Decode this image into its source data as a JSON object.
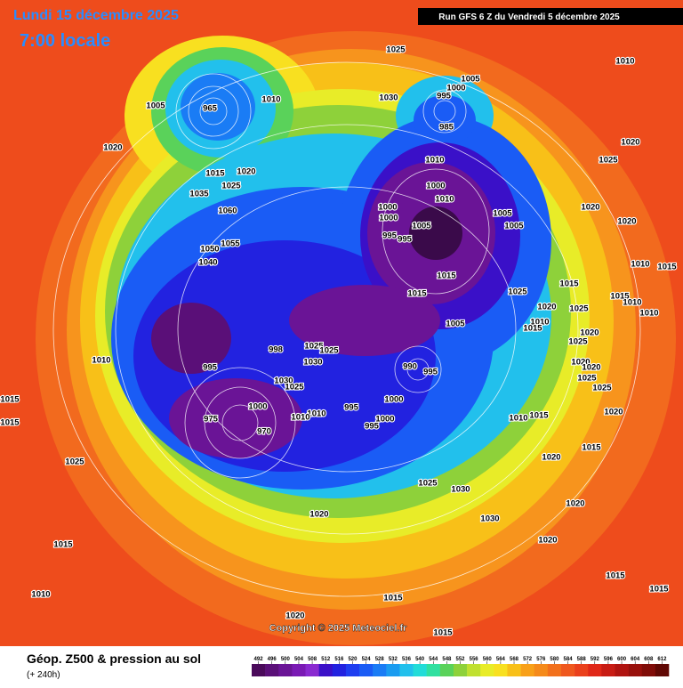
{
  "header": {
    "date": "Lundi 15 décembre 2025",
    "time": "7:00 locale",
    "run": "Run GFS 6 Z du Vendredi 5 décembre 2025"
  },
  "copyright": "Copyright © 2025 Meteociel.fr",
  "footer": {
    "title": "Géop. Z500 & pression au sol",
    "subtitle": "(+ 240h)"
  },
  "colorbar": {
    "ticks": [
      492,
      496,
      500,
      504,
      508,
      512,
      516,
      520,
      524,
      528,
      532,
      536,
      540,
      544,
      548,
      552,
      556,
      560,
      564,
      568,
      572,
      576,
      580,
      584,
      588,
      592,
      596,
      600,
      604,
      608,
      612
    ],
    "colors": [
      "#4a0a5a",
      "#5a0f78",
      "#6a1496",
      "#7a1ab4",
      "#8a2ad0",
      "#3a10c8",
      "#2222e0",
      "#1e3ef0",
      "#1a5cf5",
      "#1a7cf5",
      "#1a9cf0",
      "#22c0ec",
      "#22dcd8",
      "#30e0a0",
      "#5ad25a",
      "#8ed13a",
      "#c0e030",
      "#e8ec28",
      "#f8e020",
      "#f8c018",
      "#f8a018",
      "#f58a1a",
      "#f2701c",
      "#ef581e",
      "#ea401c",
      "#e02818",
      "#c81c14",
      "#b01410",
      "#98100c",
      "#800c08",
      "#600804"
    ]
  },
  "map": {
    "pressure_labels": [
      1025,
      1010,
      1005,
      1000,
      995,
      985,
      1010,
      1030,
      1005,
      965,
      1020,
      1010,
      1020,
      1025,
      1015,
      1020,
      1025,
      1035,
      1060,
      1000,
      1010,
      1000,
      1000,
      1005,
      1005,
      1020,
      1020,
      1005,
      995,
      995,
      1055,
      1050,
      1040,
      1010,
      1015,
      1015,
      1025,
      1015,
      1015,
      1020,
      1025,
      1015,
      1010,
      1010,
      1005,
      1010,
      1015,
      1020,
      1025,
      998,
      1025,
      1025,
      1030,
      1010,
      995,
      990,
      995,
      1020,
      1020,
      1025,
      1025,
      1030,
      1025,
      1000,
      995,
      1000,
      1010,
      1010,
      975,
      1000,
      995,
      970,
      1010,
      1015,
      1020,
      1015,
      1015,
      1025,
      1015,
      1020,
      1025,
      1030,
      1020,
      1020,
      1030,
      1015,
      1020,
      1010,
      1015,
      1015,
      1015,
      1020,
      1015
    ]
  }
}
